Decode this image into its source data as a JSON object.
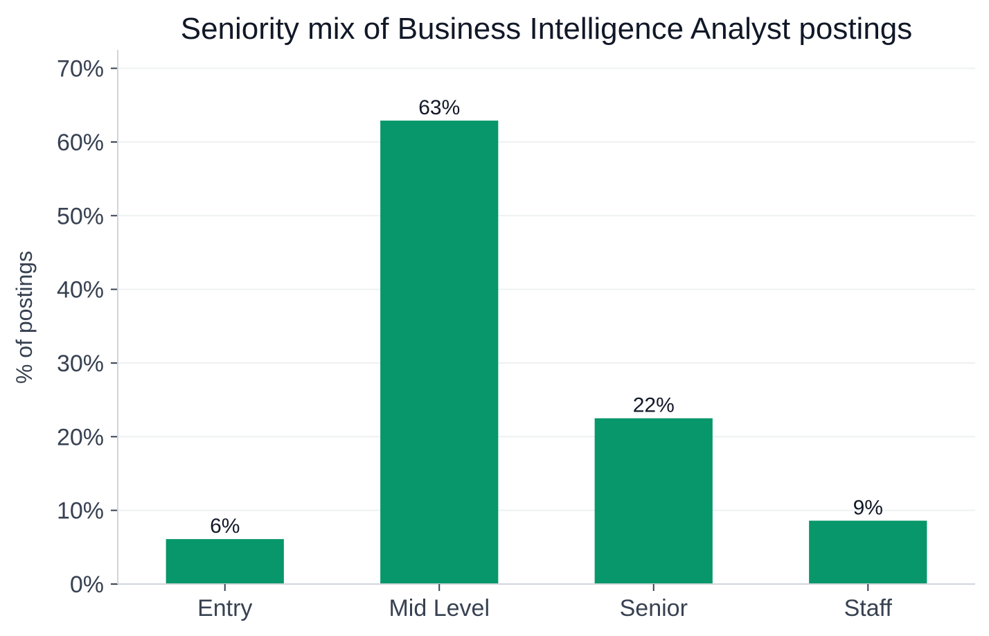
{
  "chart_data": {
    "type": "bar",
    "title": "Seniority mix of Business Intelligence Analyst postings",
    "xlabel": "",
    "ylabel": "% of postings",
    "categories": [
      "Entry",
      "Mid Level",
      "Senior",
      "Staff"
    ],
    "values": [
      6.1,
      62.9,
      22.5,
      8.6
    ],
    "value_labels": [
      "6%",
      "63%",
      "22%",
      "9%"
    ],
    "ylim": [
      0,
      72.5
    ],
    "yticks": [
      0,
      10,
      20,
      30,
      40,
      50,
      60,
      70
    ],
    "ytick_labels": [
      "0%",
      "10%",
      "20%",
      "30%",
      "40%",
      "50%",
      "60%",
      "70%"
    ],
    "grid": "horizontal",
    "legend": "none"
  },
  "colors": {
    "bar": "#07976a",
    "grid": "#eef0f2",
    "axis": "#d1d5db"
  }
}
